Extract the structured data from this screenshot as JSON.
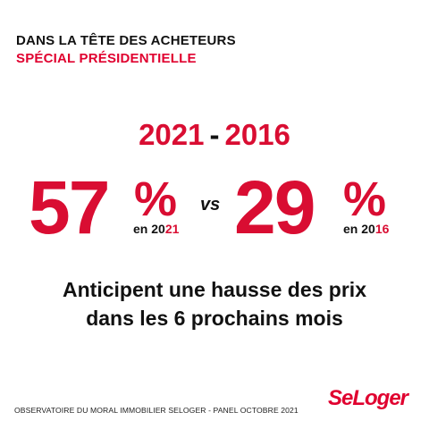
{
  "header": {
    "title": "DANS LA TÊTE DES ACHETEURS",
    "subtitle": "SPÉCIAL PRÉSIDENTIELLE"
  },
  "comparison": {
    "year_a": "2021",
    "separator": "-",
    "year_b": "2016"
  },
  "stat_left": {
    "value": "57",
    "percent_sign": "%",
    "label_prefix": "en 20",
    "label_accent": "21"
  },
  "vs_label": "vs",
  "stat_right": {
    "value": "29",
    "percent_sign": "%",
    "label_prefix": "en 20",
    "label_accent": "16"
  },
  "caption": {
    "line1": "Anticipent une hausse des prix",
    "line2": "dans les 6 prochains mois"
  },
  "footer": {
    "source": "OBSERVATOIRE DU MORAL IMMOBILIER SELOGER - PANEL OCTOBRE 2021",
    "logo_text": "SeLoger"
  },
  "colors": {
    "accent": "#d90d32",
    "text": "#111111",
    "background": "#ffffff"
  }
}
